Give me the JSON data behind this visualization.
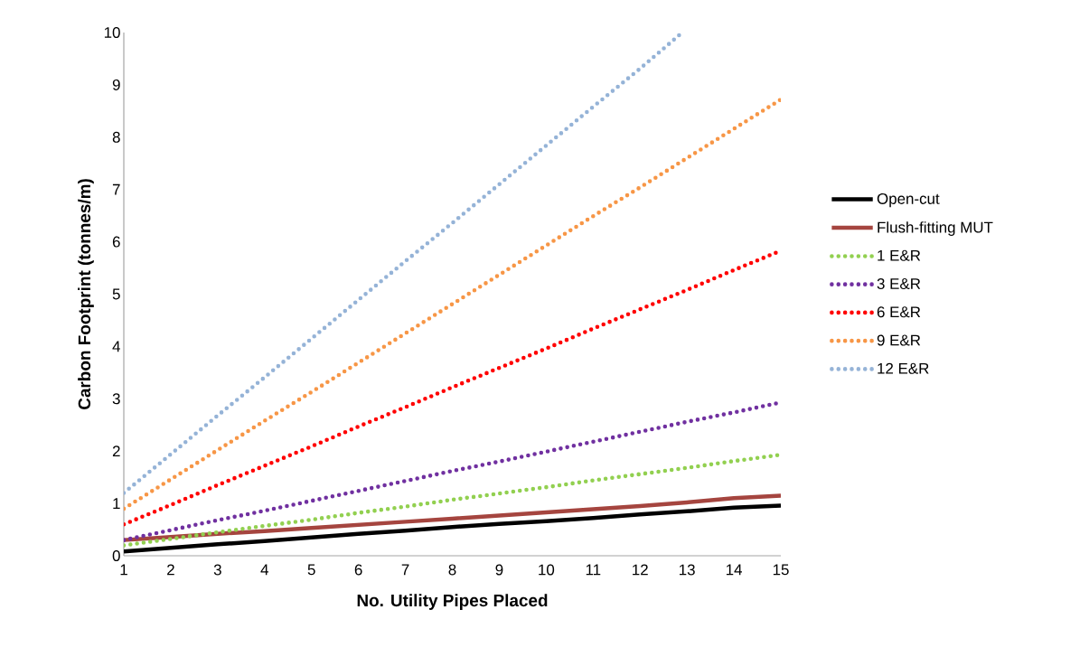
{
  "chart_data": {
    "type": "line",
    "xlabel": "No. Utility Pipes Placed",
    "ylabel": "Carbon Footprint (tonnes/m)",
    "x": [
      1,
      2,
      3,
      4,
      5,
      6,
      7,
      8,
      9,
      10,
      11,
      12,
      13,
      14,
      15
    ],
    "xlim": [
      1,
      15
    ],
    "xticks": [
      1,
      2,
      3,
      4,
      5,
      6,
      7,
      8,
      9,
      10,
      11,
      12,
      13,
      14,
      15
    ],
    "ylim": [
      0,
      10
    ],
    "yticks": [
      0,
      1,
      2,
      3,
      4,
      5,
      6,
      7,
      8,
      9,
      10
    ],
    "grid": false,
    "legend": "right",
    "series": [
      {
        "name": "Open-cut",
        "color": "#000000",
        "line_style": "solid",
        "values": [
          0.08,
          0.15,
          0.22,
          0.28,
          0.35,
          0.42,
          0.48,
          0.55,
          0.61,
          0.66,
          0.72,
          0.79,
          0.85,
          0.92,
          0.96
        ]
      },
      {
        "name": "Flush-fitting MUT",
        "color": "#a5453f",
        "line_style": "solid",
        "values": [
          0.3,
          0.36,
          0.42,
          0.47,
          0.53,
          0.59,
          0.65,
          0.71,
          0.77,
          0.83,
          0.89,
          0.95,
          1.02,
          1.1,
          1.15
        ]
      },
      {
        "name": "1 E&R",
        "color": "#92d050",
        "line_style": "dotted",
        "values": [
          0.2,
          0.32,
          0.45,
          0.57,
          0.69,
          0.82,
          0.94,
          1.07,
          1.19,
          1.31,
          1.44,
          1.56,
          1.68,
          1.81,
          1.93
        ]
      },
      {
        "name": "3 E&R",
        "color": "#7030a0",
        "line_style": "dotted",
        "values": [
          0.3,
          0.49,
          0.68,
          0.86,
          1.05,
          1.24,
          1.43,
          1.62,
          1.8,
          1.99,
          2.18,
          2.37,
          2.56,
          2.74,
          2.93
        ]
      },
      {
        "name": "6 E&R",
        "color": "#ff0000",
        "line_style": "dotted",
        "values": [
          0.6,
          0.97,
          1.35,
          1.72,
          2.09,
          2.47,
          2.84,
          3.22,
          3.59,
          3.96,
          4.34,
          4.71,
          5.08,
          5.46,
          5.83
        ]
      },
      {
        "name": "9 E&R",
        "color": "#f79646",
        "line_style": "dotted",
        "values": [
          0.9,
          1.46,
          2.02,
          2.58,
          3.13,
          3.69,
          4.25,
          4.81,
          5.37,
          5.93,
          6.49,
          7.04,
          7.6,
          8.16,
          8.72
        ]
      },
      {
        "name": "12 E&R",
        "color": "#95b3d7",
        "line_style": "dotted",
        "x": [
          1,
          2,
          3,
          4,
          5,
          6,
          7,
          8,
          9,
          10,
          11,
          12,
          12.9
        ],
        "values": [
          1.2,
          1.94,
          2.68,
          3.41,
          4.15,
          4.89,
          5.63,
          6.36,
          7.1,
          7.84,
          8.58,
          9.31,
          10
        ]
      }
    ]
  }
}
